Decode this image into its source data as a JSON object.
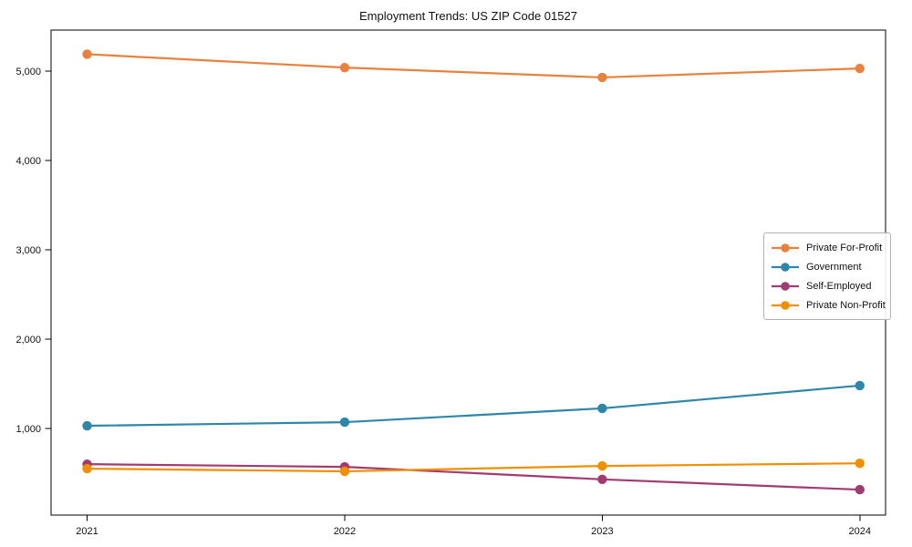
{
  "chart_data": {
    "type": "line",
    "title": "Employment Trends: US ZIP Code 01527",
    "xlabel": "",
    "ylabel": "",
    "x": [
      2021,
      2022,
      2023,
      2024
    ],
    "x_tick_labels": [
      "2021",
      "2022",
      "2023",
      "2024"
    ],
    "y_ticks": [
      1000,
      2000,
      3000,
      4000,
      5000
    ],
    "y_tick_labels": [
      "1,000",
      "2,000",
      "3,000",
      "4,000",
      "5,000"
    ],
    "xlim": [
      2020.86,
      2024.1
    ],
    "ylim": [
      30,
      5460
    ],
    "grid": false,
    "legend_position": "center-right",
    "marker": "circle",
    "axis_color": "#000000",
    "series": [
      {
        "name": "Private For-Profit",
        "color": "#E8823E",
        "values": [
          5190,
          5040,
          4930,
          5030
        ]
      },
      {
        "name": "Government",
        "color": "#2E86AB",
        "values": [
          1030,
          1070,
          1225,
          1480
        ]
      },
      {
        "name": "Self-Employed",
        "color": "#A23B72",
        "values": [
          600,
          570,
          430,
          315
        ]
      },
      {
        "name": "Private Non-Profit",
        "color": "#F18F01",
        "values": [
          550,
          520,
          580,
          610
        ]
      }
    ]
  }
}
